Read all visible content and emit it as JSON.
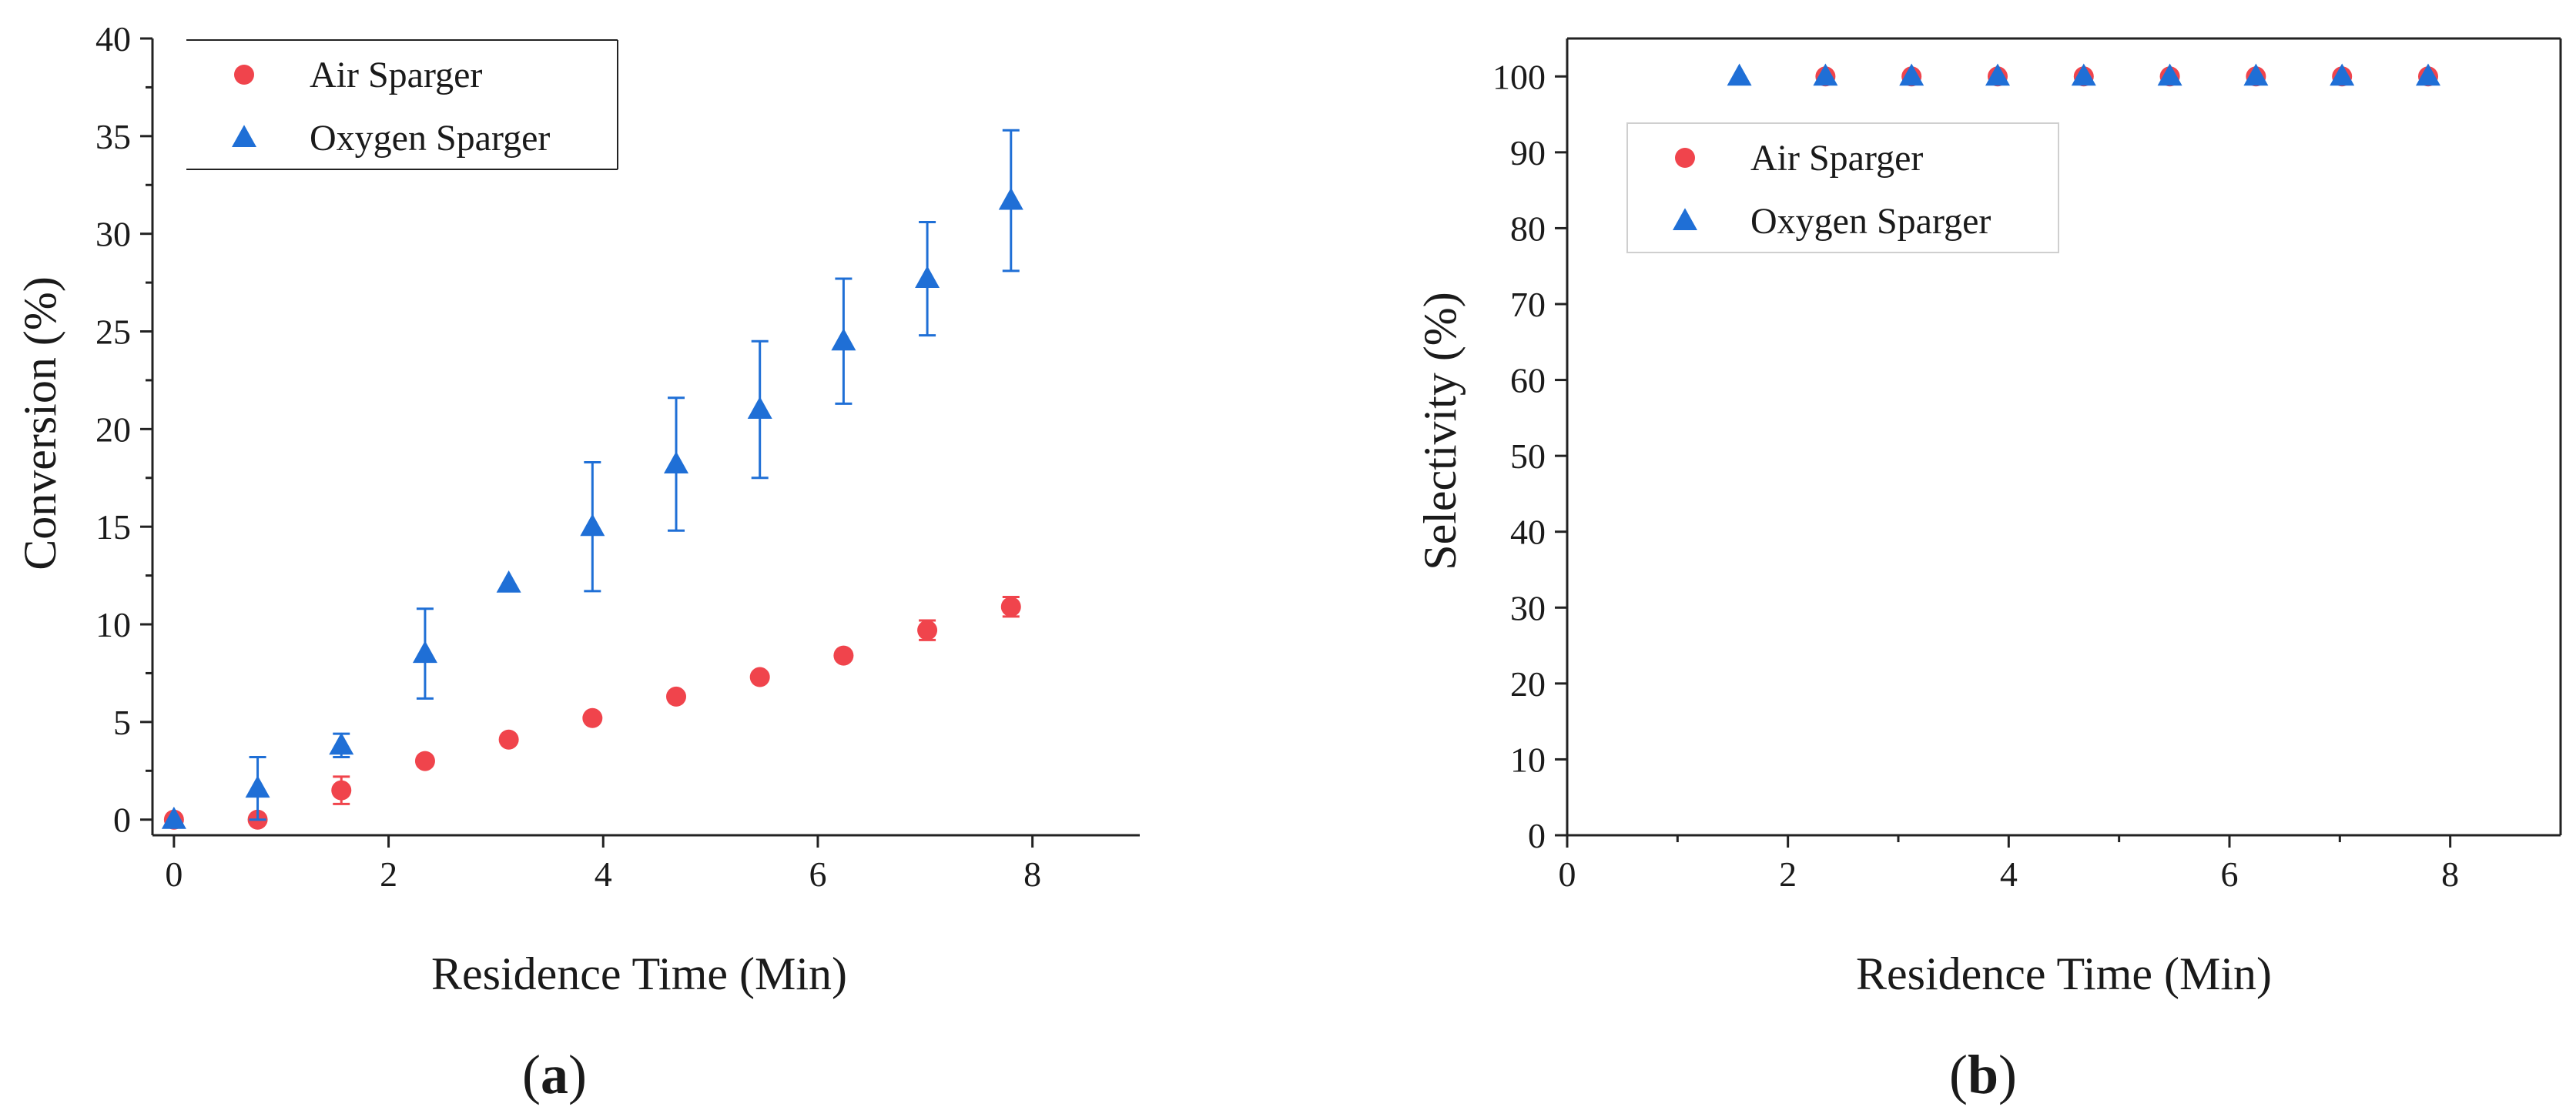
{
  "chart_data": [
    {
      "type": "scatter",
      "panel_label": "a",
      "xlabel": "Residence Time (Min)",
      "ylabel": "Conversion (%)",
      "xlim": [
        -0.2,
        9
      ],
      "ylim": [
        -0.8,
        40
      ],
      "xticks": [
        0,
        2,
        4,
        6,
        8
      ],
      "yticks": [
        0,
        5,
        10,
        15,
        20,
        25,
        30,
        35,
        40
      ],
      "legend_position": "top-left",
      "series": [
        {
          "name": "Air Sparger",
          "marker": "circle",
          "color": "#f0444c",
          "x": [
            0,
            0.78,
            1.56,
            2.34,
            3.12,
            3.9,
            4.68,
            5.46,
            6.24,
            7.02,
            7.8
          ],
          "y": [
            0,
            0,
            1.5,
            3.0,
            4.1,
            5.2,
            6.3,
            7.3,
            8.4,
            9.7,
            10.9
          ],
          "err": [
            0,
            0,
            0.7,
            0,
            0,
            0,
            0,
            0,
            0,
            0.5,
            0.5
          ]
        },
        {
          "name": "Oxygen Sparger",
          "marker": "triangle",
          "color": "#1f6fd6",
          "x": [
            0,
            0.78,
            1.56,
            2.34,
            3.12,
            3.9,
            4.68,
            5.46,
            6.24,
            7.02,
            7.8
          ],
          "y": [
            0,
            1.6,
            3.8,
            8.5,
            12.1,
            15.0,
            18.2,
            21.0,
            24.5,
            27.7,
            31.7
          ],
          "err": [
            0,
            1.6,
            0.6,
            2.3,
            0,
            3.3,
            3.4,
            3.5,
            3.2,
            2.9,
            3.6
          ]
        }
      ]
    },
    {
      "type": "scatter",
      "panel_label": "b",
      "xlabel": "Residence Time (Min)",
      "ylabel": "Selectivity (%)",
      "xlim": [
        0,
        9
      ],
      "ylim": [
        0,
        105
      ],
      "xticks": [
        0,
        2,
        4,
        6,
        8
      ],
      "yticks": [
        0,
        10,
        20,
        30,
        40,
        50,
        60,
        70,
        80,
        90,
        100
      ],
      "legend_position": "top-left",
      "series": [
        {
          "name": "Air Sparger",
          "marker": "circle",
          "color": "#f0444c",
          "x": [
            2.34,
            3.12,
            3.9,
            4.68,
            5.46,
            6.24,
            7.02,
            7.8
          ],
          "y": [
            100,
            100,
            100,
            100,
            100,
            100,
            100,
            100
          ]
        },
        {
          "name": "Oxygen Sparger",
          "marker": "triangle",
          "color": "#1f6fd6",
          "x": [
            1.56,
            2.34,
            3.12,
            3.9,
            4.68,
            5.46,
            6.24,
            7.02,
            7.8
          ],
          "y": [
            100,
            100,
            100,
            100,
            100,
            100,
            100,
            100,
            100
          ]
        }
      ]
    }
  ]
}
